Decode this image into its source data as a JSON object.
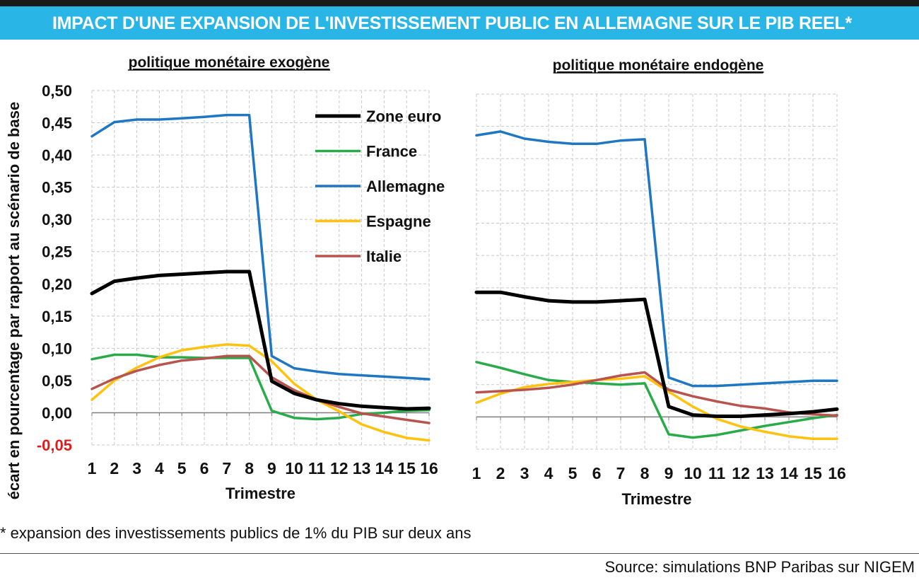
{
  "header": {
    "title": "IMPACT D'UNE EXPANSION DE L'INVESTISSEMENT PUBLIC EN ALLEMAGNE SUR LE PIB REEL*"
  },
  "footnote": "* expansion des investissements publics de 1% du PIB sur deux ans",
  "source": "Source: simulations BNP Paribas sur NIGEM",
  "colors": {
    "title_bg": "#29b6e6",
    "zone_euro": "#000000",
    "france": "#2aab4a",
    "allemagne": "#1f77c4",
    "espagne": "#ffc20e",
    "italie": "#b85450",
    "negative_tick": "#e31b1b"
  },
  "legend": {
    "placement": "top-right of left panel",
    "entries": [
      "Zone euro",
      "France",
      "Allemagne",
      "Espagne",
      "Italie"
    ]
  },
  "y_ticks": [
    "0,50",
    "0,45",
    "0,40",
    "0,35",
    "0,30",
    "0,25",
    "0,20",
    "0,15",
    "0,10",
    "0,05",
    "0,00",
    "-0,05"
  ],
  "x_ticks": [
    "1",
    "2",
    "3",
    "4",
    "5",
    "6",
    "7",
    "8",
    "9",
    "10",
    "11",
    "12",
    "13",
    "14",
    "15",
    "16"
  ],
  "chart_data": [
    {
      "type": "line",
      "title": "politique monétaire exogène",
      "xlabel": "Trimestre",
      "ylabel": "écart en pourcentage par rapport au scénario de base",
      "ylim": [
        -0.05,
        0.5
      ],
      "grid": true,
      "x": [
        1,
        2,
        3,
        4,
        5,
        6,
        7,
        8,
        9,
        10,
        11,
        12,
        13,
        14,
        15,
        16
      ],
      "series": [
        {
          "name": "Zone euro",
          "values": [
            0.185,
            0.204,
            0.209,
            0.213,
            0.215,
            0.217,
            0.219,
            0.219,
            0.049,
            0.03,
            0.02,
            0.014,
            0.01,
            0.008,
            0.006,
            0.007
          ]
        },
        {
          "name": "France",
          "values": [
            0.083,
            0.09,
            0.09,
            0.086,
            0.086,
            0.085,
            0.085,
            0.085,
            0.003,
            -0.008,
            -0.01,
            -0.008,
            -0.002,
            0.0,
            0.003,
            0.004
          ]
        },
        {
          "name": "Allemagne",
          "values": [
            0.429,
            0.451,
            0.455,
            0.455,
            0.457,
            0.459,
            0.462,
            0.462,
            0.088,
            0.069,
            0.064,
            0.06,
            0.058,
            0.056,
            0.054,
            0.052
          ]
        },
        {
          "name": "Espagne",
          "values": [
            0.02,
            0.05,
            0.07,
            0.086,
            0.097,
            0.102,
            0.106,
            0.104,
            0.08,
            0.045,
            0.02,
            0.002,
            -0.018,
            -0.03,
            -0.039,
            -0.043
          ]
        },
        {
          "name": "Italie",
          "values": [
            0.037,
            0.053,
            0.065,
            0.074,
            0.081,
            0.084,
            0.088,
            0.088,
            0.055,
            0.035,
            0.02,
            0.009,
            -0.001,
            -0.006,
            -0.011,
            -0.016
          ]
        }
      ]
    },
    {
      "type": "line",
      "title": "politique monétaire endogène",
      "xlabel": "Trimestre",
      "ylim": [
        -0.05,
        0.5
      ],
      "grid": true,
      "x": [
        1,
        2,
        3,
        4,
        5,
        6,
        7,
        8,
        9,
        10,
        11,
        12,
        13,
        14,
        15,
        16
      ],
      "series": [
        {
          "name": "Zone euro",
          "values": [
            0.193,
            0.193,
            0.186,
            0.18,
            0.178,
            0.178,
            0.18,
            0.182,
            0.016,
            0.003,
            0.001,
            0.001,
            0.003,
            0.005,
            0.008,
            0.012
          ]
        },
        {
          "name": "France",
          "values": [
            0.085,
            0.076,
            0.066,
            0.057,
            0.054,
            0.052,
            0.05,
            0.052,
            -0.027,
            -0.032,
            -0.028,
            -0.021,
            -0.014,
            -0.008,
            -0.002,
            0.003
          ]
        },
        {
          "name": "Allemagne",
          "values": [
            0.436,
            0.442,
            0.431,
            0.426,
            0.423,
            0.423,
            0.428,
            0.43,
            0.061,
            0.048,
            0.048,
            0.05,
            0.052,
            0.054,
            0.056,
            0.056
          ]
        },
        {
          "name": "Espagne",
          "values": [
            0.022,
            0.036,
            0.046,
            0.051,
            0.054,
            0.057,
            0.059,
            0.063,
            0.039,
            0.016,
            -0.003,
            -0.015,
            -0.023,
            -0.03,
            -0.034,
            -0.034
          ]
        },
        {
          "name": "Italie",
          "values": [
            0.038,
            0.04,
            0.042,
            0.045,
            0.05,
            0.057,
            0.064,
            0.069,
            0.042,
            0.032,
            0.024,
            0.017,
            0.013,
            0.007,
            0.004,
            0.002
          ]
        }
      ]
    }
  ]
}
